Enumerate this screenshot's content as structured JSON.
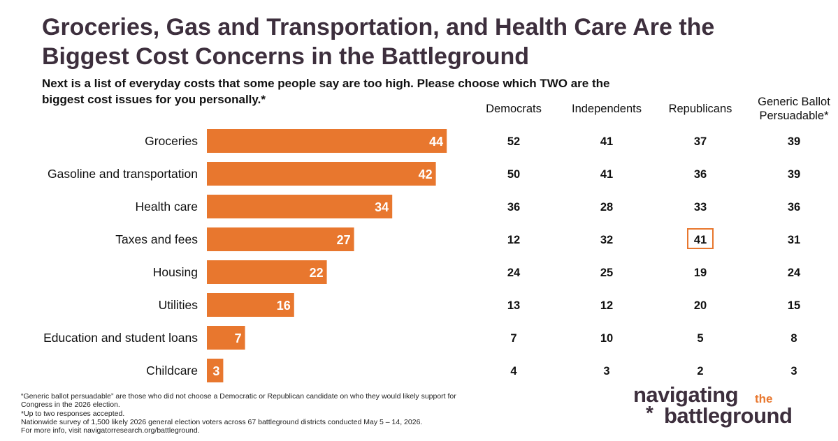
{
  "title_lines": [
    "Groceries, Gas and Transportation, and Health Care Are the",
    "Biggest Cost Concerns in the Battleground"
  ],
  "subtitle_lines": [
    "Next is a list of everyday costs that some people say are too high. Please choose which TWO are the",
    "biggest cost issues for you personally.*"
  ],
  "columns": [
    {
      "label_lines": [
        "Democrats"
      ]
    },
    {
      "label_lines": [
        "Independents"
      ]
    },
    {
      "label_lines": [
        "Republicans"
      ]
    },
    {
      "label_lines": [
        "Generic Ballot",
        "Persuadable*"
      ]
    }
  ],
  "chart_data": {
    "type": "bar",
    "orientation": "horizontal",
    "bar_color": "#e8772e",
    "highlight_color": "#e8772e",
    "categories": [
      "Groceries",
      "Gasoline and transportation",
      "Health care",
      "Taxes and fees",
      "Housing",
      "Utilities",
      "Education and student loans",
      "Childcare"
    ],
    "values": [
      44,
      42,
      34,
      27,
      22,
      16,
      7,
      3
    ],
    "table_values": {
      "Democrats": [
        52,
        50,
        36,
        12,
        24,
        13,
        7,
        4
      ],
      "Independents": [
        41,
        41,
        28,
        32,
        25,
        12,
        10,
        3
      ],
      "Republicans": [
        37,
        36,
        33,
        41,
        19,
        20,
        5,
        2
      ],
      "Generic Ballot Persuadable*": [
        39,
        39,
        36,
        31,
        24,
        15,
        8,
        3
      ]
    },
    "highlighted_cell": {
      "column": "Republicans",
      "category": "Taxes and fees"
    }
  },
  "footnotes": [
    "“Generic ballot persuadable” are those who did not choose a Democratic or Republican candidate on who they would likely support for",
    "Congress in the 2026 election.",
    "*Up to two responses accepted.",
    "Nationwide survey of 1,500 likely 2026 general election voters across 67 battleground districts conducted May 5 – 14, 2026.",
    "For more info, visit navigatorresearch.org/battleground."
  ],
  "logo": {
    "line1": "navigating",
    "the": "the",
    "star": "*",
    "line2": "battleground"
  }
}
